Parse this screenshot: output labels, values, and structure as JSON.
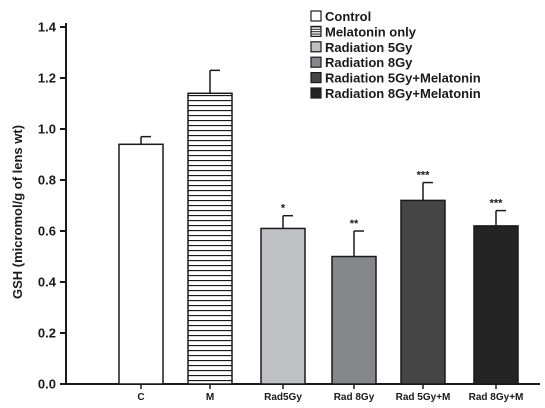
{
  "chart_data": {
    "type": "bar",
    "title": "",
    "xlabel": "",
    "ylabel": "GSH (micromol/g of lens wt)",
    "ylim": [
      0,
      1.4
    ],
    "yticks": [
      "0.0",
      "0.2",
      "0.4",
      "0.6",
      "0.8",
      "1.0",
      "1.2",
      "1.4"
    ],
    "categories": [
      "C",
      "M",
      "Rad5Gy",
      "Rad 8Gy",
      "Rad 5Gy+M",
      "Rad 8Gy+M"
    ],
    "values": [
      0.94,
      1.14,
      0.61,
      0.5,
      0.72,
      0.62
    ],
    "errors": [
      0.03,
      0.09,
      0.05,
      0.1,
      0.07,
      0.06
    ],
    "significance": [
      "",
      "",
      "*",
      "**",
      "***",
      "***"
    ],
    "legend": {
      "placement": "top-right",
      "entries": [
        "Control",
        "Melatonin only",
        "Radiation 5Gy",
        "Radiation 8Gy",
        "Radiation 5Gy+Melatonin",
        "Radiation 8Gy+Melatonin"
      ]
    },
    "colors": [
      "#ffffff",
      "#ffffff",
      "#bfc0c4",
      "#86878b",
      "#454545",
      "#242424"
    ],
    "fills": [
      "solid",
      "horizontal-stripes",
      "solid",
      "solid",
      "solid",
      "solid"
    ],
    "grid": false
  }
}
